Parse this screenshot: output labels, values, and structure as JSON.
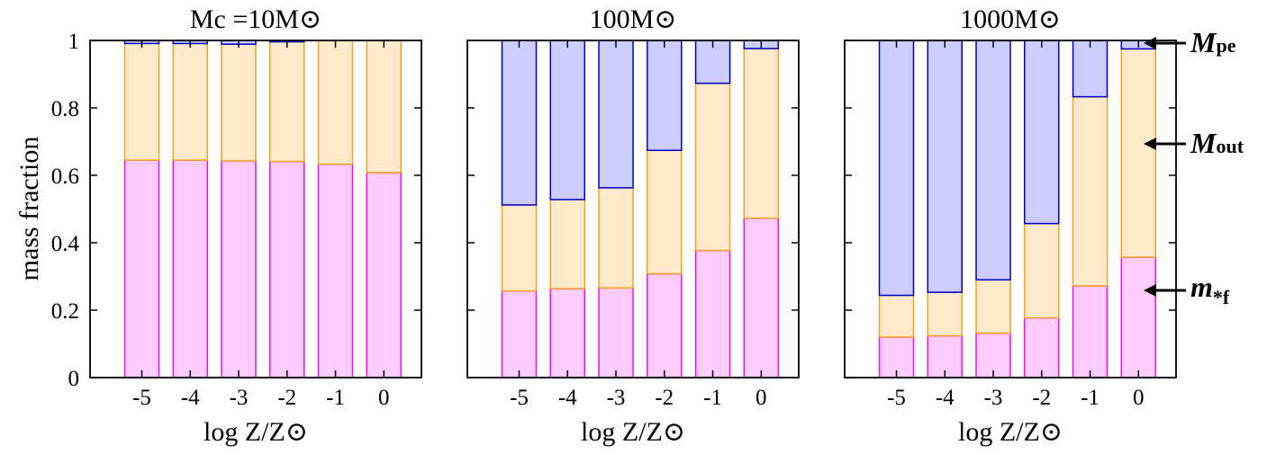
{
  "colors": {
    "pe_fill": "#ccccff",
    "pe_edge": "#0000cc",
    "out_fill": "#ffebcc",
    "out_edge": "#f5a020",
    "star_fill": "#ffccff",
    "star_edge": "#ee11ee",
    "mpe_text": "#1010ee",
    "mout_text": "#f5a000",
    "mstar_text": "#ee11ee"
  },
  "y_axis_label": "mass fraction",
  "annotations": {
    "mpe": {
      "main": "M",
      "sub": "pe"
    },
    "mout": {
      "main": "M",
      "sub": "out"
    },
    "mstar": {
      "main": "m",
      "sub": "*f"
    }
  },
  "chart_data": [
    {
      "type": "bar",
      "stacked": true,
      "title": "Mc =10M⊙",
      "xlabel": "log Z/Z⊙",
      "ylabel": "mass fraction",
      "ylim": [
        0,
        1
      ],
      "yticks": [
        "0",
        "0.2",
        "0.4",
        "0.6",
        "0.8",
        "1"
      ],
      "categories": [
        "-5",
        "-4",
        "-3",
        "-2",
        "-1",
        "0"
      ],
      "series": [
        {
          "key": "star",
          "values": [
            0.645,
            0.645,
            0.643,
            0.641,
            0.633,
            0.608
          ]
        },
        {
          "key": "out",
          "values": [
            0.346,
            0.346,
            0.346,
            0.355,
            0.367,
            0.392
          ]
        },
        {
          "key": "pe",
          "values": [
            0.009,
            0.009,
            0.011,
            0.004,
            0.0,
            0.0
          ]
        }
      ]
    },
    {
      "type": "bar",
      "stacked": true,
      "title": "100M⊙",
      "xlabel": "log Z/Z⊙",
      "ylim": [
        0,
        1
      ],
      "categories": [
        "-5",
        "-4",
        "-3",
        "-2",
        "-1",
        "0"
      ],
      "series": [
        {
          "key": "star",
          "values": [
            0.257,
            0.264,
            0.266,
            0.308,
            0.377,
            0.473
          ]
        },
        {
          "key": "out",
          "values": [
            0.255,
            0.264,
            0.297,
            0.366,
            0.496,
            0.503
          ]
        },
        {
          "key": "pe",
          "values": [
            0.488,
            0.472,
            0.437,
            0.326,
            0.127,
            0.024
          ]
        }
      ]
    },
    {
      "type": "bar",
      "stacked": true,
      "title": "1000M⊙",
      "xlabel": "log Z/Z⊙",
      "ylim": [
        0,
        1
      ],
      "categories": [
        "-5",
        "-4",
        "-3",
        "-2",
        "-1",
        "0"
      ],
      "series": [
        {
          "key": "star",
          "values": [
            0.12,
            0.124,
            0.132,
            0.177,
            0.272,
            0.357
          ]
        },
        {
          "key": "out",
          "values": [
            0.124,
            0.129,
            0.158,
            0.28,
            0.561,
            0.618
          ]
        },
        {
          "key": "pe",
          "values": [
            0.756,
            0.747,
            0.71,
            0.543,
            0.167,
            0.025
          ]
        }
      ]
    }
  ]
}
